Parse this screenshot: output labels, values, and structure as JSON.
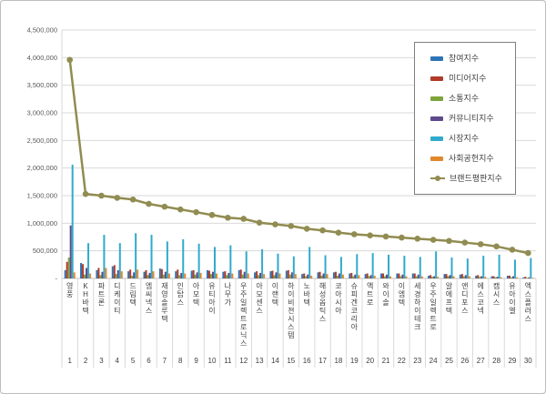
{
  "frame": {
    "background": "#FFFFFF",
    "border_color": "#BDBDBD"
  },
  "chart_data": {
    "type": "bar",
    "title": "",
    "xlabel": "",
    "ylabel": "",
    "grid": true,
    "legend_position": "right-inside",
    "categories": [
      "영풍",
      "KH바텍",
      "파트론",
      "디케이티",
      "드림텍",
      "엠씨넥스",
      "재영솔루텍",
      "인탑스",
      "아모텍",
      "유티아이",
      "나무가",
      "우주일렉트로닉스",
      "아모센스",
      "이랜텍",
      "하이비젼시스템",
      "노바텍",
      "해성옵틱스",
      "코아시아",
      "슈피겐코리아",
      "액트로",
      "와이솔",
      "이엠텍",
      "세경하이테크",
      "우주일렉트로",
      "알에프텍",
      "앤디포스",
      "에스코넥",
      "캠시스",
      "유아이엘",
      "엑스플러스"
    ],
    "rank_labels": [
      "1",
      "2",
      "3",
      "4",
      "5",
      "6",
      "7",
      "8",
      "9",
      "10",
      "11",
      "12",
      "13",
      "14",
      "15",
      "16",
      "17",
      "18",
      "19",
      "20",
      "21",
      "22",
      "23",
      "24",
      "25",
      "26",
      "27",
      "28",
      "29",
      "30"
    ],
    "series": [
      {
        "name": "참여지수",
        "color": "#2E74B5",
        "values": [
          150000,
          280000,
          150000,
          220000,
          130000,
          120000,
          180000,
          130000,
          140000,
          150000,
          120000,
          150000,
          110000,
          130000,
          140000,
          80000,
          110000,
          110000,
          90000,
          80000,
          90000,
          90000,
          90000,
          50000,
          80000,
          70000,
          50000,
          40000,
          50000,
          20000
        ]
      },
      {
        "name": "미디어지수",
        "color": "#B03B28",
        "values": [
          300000,
          260000,
          190000,
          240000,
          160000,
          150000,
          170000,
          160000,
          150000,
          140000,
          130000,
          160000,
          130000,
          140000,
          150000,
          90000,
          120000,
          120000,
          100000,
          90000,
          90000,
          90000,
          90000,
          60000,
          80000,
          80000,
          60000,
          40000,
          50000,
          30000
        ]
      },
      {
        "name": "소통지수",
        "color": "#7EA43D",
        "values": [
          380000,
          70000,
          60000,
          80000,
          50000,
          60000,
          70000,
          60000,
          70000,
          80000,
          60000,
          70000,
          60000,
          60000,
          70000,
          40000,
          50000,
          50000,
          40000,
          40000,
          40000,
          40000,
          40000,
          30000,
          40000,
          40000,
          30000,
          20000,
          20000,
          10000
        ]
      },
      {
        "name": "커뮤니티지수",
        "color": "#5F4B8B",
        "values": [
          960000,
          190000,
          120000,
          150000,
          110000,
          100000,
          120000,
          100000,
          110000,
          120000,
          100000,
          120000,
          100000,
          110000,
          110000,
          70000,
          90000,
          90000,
          70000,
          60000,
          70000,
          70000,
          70000,
          40000,
          60000,
          60000,
          40000,
          30000,
          40000,
          20000
        ]
      },
      {
        "name": "시장지수",
        "color": "#31AACB",
        "values": [
          2060000,
          640000,
          790000,
          640000,
          820000,
          790000,
          670000,
          710000,
          630000,
          570000,
          600000,
          490000,
          530000,
          450000,
          400000,
          570000,
          420000,
          390000,
          440000,
          460000,
          430000,
          410000,
          390000,
          490000,
          380000,
          360000,
          410000,
          430000,
          340000,
          370000
        ]
      },
      {
        "name": "사회공헌지수",
        "color": "#E1882F",
        "values": [
          110000,
          90000,
          190000,
          130000,
          160000,
          130000,
          90000,
          90000,
          100000,
          90000,
          90000,
          90000,
          80000,
          90000,
          80000,
          50000,
          80000,
          70000,
          60000,
          50000,
          40000,
          40000,
          40000,
          30000,
          40000,
          40000,
          30000,
          20000,
          20000,
          10000
        ]
      }
    ],
    "line_series": {
      "name": "브랜드평판지수",
      "color": "#918C51",
      "values": [
        3960000,
        1530000,
        1500000,
        1460000,
        1430000,
        1350000,
        1300000,
        1250000,
        1200000,
        1150000,
        1100000,
        1080000,
        1010000,
        980000,
        950000,
        900000,
        870000,
        830000,
        800000,
        780000,
        760000,
        740000,
        720000,
        700000,
        680000,
        650000,
        620000,
        580000,
        520000,
        460000
      ]
    },
    "y_axis": {
      "min": 0,
      "max": 4500000,
      "step": 500000,
      "tick_labels": [
        "-",
        "500,000",
        "1,000,000",
        "1,500,000",
        "2,000,000",
        "2,500,000",
        "3,000,000",
        "3,500,000",
        "4,000,000",
        "4,500,000"
      ]
    },
    "styles": {
      "grid_color": "#D9D9D9",
      "axis_line_color": "#BFBFBF",
      "separator_color": "#D9D9D9",
      "tick_text_color": "#595959",
      "category_text_color": "#404040",
      "legend_border_color": "#7F7F7F",
      "legend_text_color": "#404040",
      "plot_background": "#FFFFFF"
    }
  }
}
